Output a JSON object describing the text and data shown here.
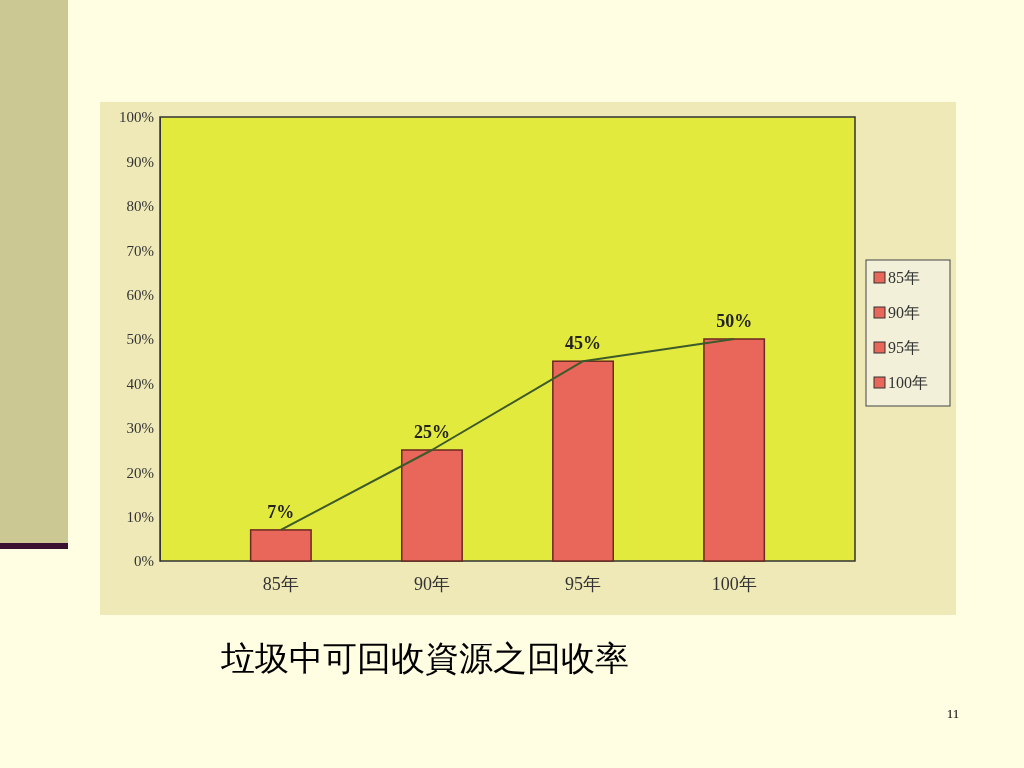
{
  "chart_data": {
    "type": "bar",
    "title": "垃圾中可回收資源之回收率",
    "categories": [
      "85年",
      "90年",
      "95年",
      "100年"
    ],
    "series": [
      {
        "name": "85年",
        "color": "#e8675a",
        "values": [
          7,
          null,
          null,
          null
        ]
      },
      {
        "name": "90年",
        "color": "#e8675a",
        "values": [
          null,
          25,
          null,
          null
        ]
      },
      {
        "name": "95年",
        "color": "#e8675a",
        "values": [
          null,
          null,
          45,
          null
        ]
      },
      {
        "name": "100年",
        "color": "#e8675a",
        "values": [
          null,
          null,
          null,
          50
        ]
      },
      {
        "type": "line",
        "color": "#3d5a2a",
        "values": [
          7,
          25,
          45,
          50
        ]
      }
    ],
    "ylim": [
      0,
      100
    ],
    "yticks": [
      {
        "value": 0,
        "label": "0%"
      },
      {
        "value": 10,
        "label": "10%"
      },
      {
        "value": 20,
        "label": "20%"
      },
      {
        "value": 30,
        "label": "30%"
      },
      {
        "value": 40,
        "label": "40%"
      },
      {
        "value": 50,
        "label": "50%"
      },
      {
        "value": 60,
        "label": "60%"
      },
      {
        "value": 70,
        "label": "70%"
      },
      {
        "value": 80,
        "label": "80%"
      },
      {
        "value": 90,
        "label": "90%"
      },
      {
        "value": 100,
        "label": "100%"
      }
    ],
    "value_labels": [
      "7%",
      "25%",
      "45%",
      "50%"
    ],
    "stacked": true,
    "legend": "right",
    "marker": "none",
    "annotations": [
      "11"
    ]
  }
}
